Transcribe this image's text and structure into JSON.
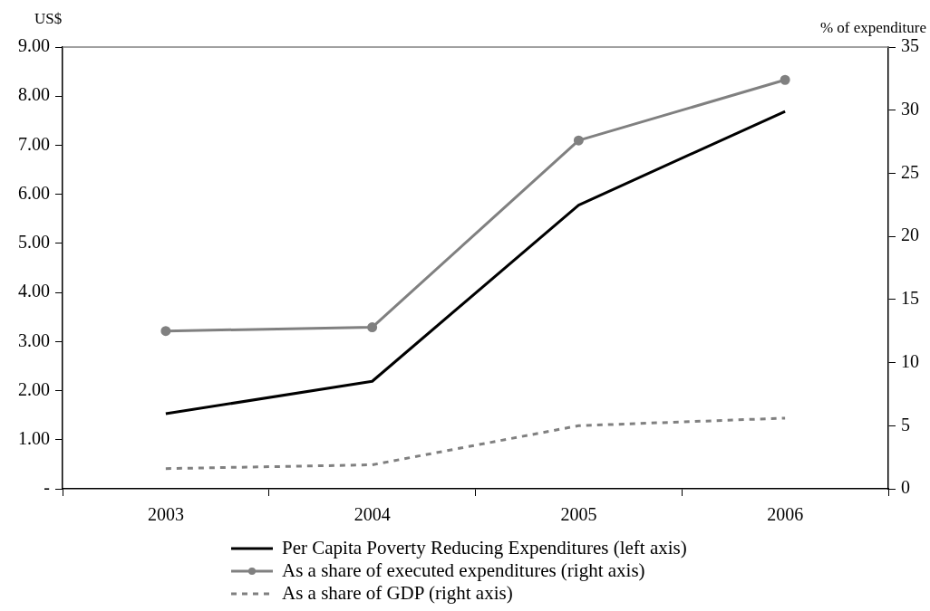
{
  "chart_data": {
    "type": "line",
    "ylabel": "US$",
    "y2label": "% of expenditure",
    "categories": [
      "2003",
      "2004",
      "2005",
      "2006"
    ],
    "ylim": [
      0,
      9
    ],
    "yticks": [
      {
        "value": 0,
        "label": "-"
      },
      {
        "value": 1,
        "label": "1.00"
      },
      {
        "value": 2,
        "label": "2.00"
      },
      {
        "value": 3,
        "label": "3.00"
      },
      {
        "value": 4,
        "label": "4.00"
      },
      {
        "value": 5,
        "label": "5.00"
      },
      {
        "value": 6,
        "label": "6.00"
      },
      {
        "value": 7,
        "label": "7.00"
      },
      {
        "value": 8,
        "label": "8.00"
      },
      {
        "value": 9,
        "label": "9.00"
      }
    ],
    "y2lim": [
      0,
      35
    ],
    "y2ticks": [
      0,
      5,
      10,
      15,
      20,
      25,
      30,
      35
    ],
    "grid": false,
    "legend": "bottom",
    "series": [
      {
        "name": "Per Capita Poverty Reducing Expenditures (left axis)",
        "color": "#000000",
        "values": [
          1.53,
          2.19,
          5.78,
          7.69
        ],
        "marker": "none",
        "line_style": "solid"
      },
      {
        "name": "As a share of executed expenditures (right axis)",
        "color": "#808080",
        "values": [
          12.5,
          12.8,
          27.6,
          32.4
        ],
        "axis": "y2",
        "marker": "circle",
        "line_style": "solid"
      },
      {
        "name": "As a share of GDP (right axis)",
        "color": "#808080",
        "values": [
          1.6,
          1.9,
          5.0,
          5.6
        ],
        "axis": "y2",
        "marker": "none",
        "line_style": "dashed"
      }
    ]
  }
}
